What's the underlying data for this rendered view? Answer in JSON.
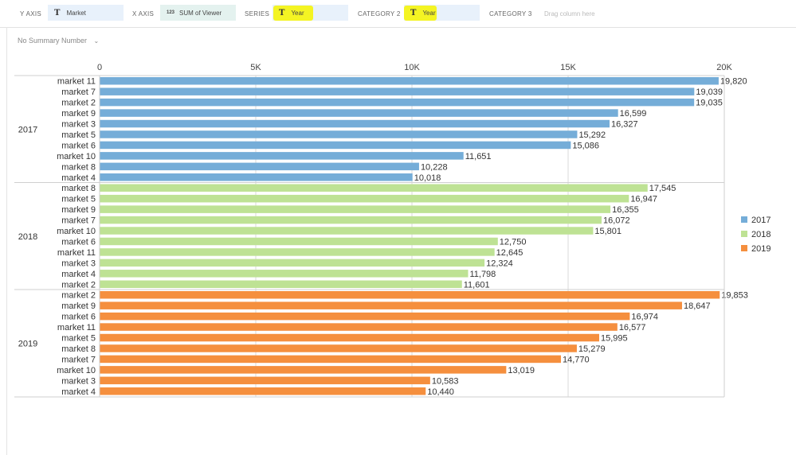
{
  "toolbar": {
    "y_axis_label": "Y AXIS",
    "y_axis_field": "Market",
    "y_axis_icon": "T",
    "x_axis_label": "X AXIS",
    "x_axis_field": "SUM of Viewer",
    "x_axis_icon": "123",
    "series_label": "SERIES",
    "series_field": "Year",
    "series_icon": "T",
    "category2_label": "CATEGORY 2",
    "category2_field": "Year",
    "category2_icon": "T",
    "category3_label": "CATEGORY 3",
    "drag_placeholder": "Drag column here"
  },
  "summary": {
    "label": "No Summary Number",
    "chevron_icon": "chevron-down-icon"
  },
  "chart_data": {
    "type": "bar",
    "orientation": "horizontal",
    "x_ticks": [
      "0",
      "5K",
      "10K",
      "15K",
      "20K"
    ],
    "xlim": [
      0,
      20000
    ],
    "grid": true,
    "legend_position": "right",
    "groups": [
      {
        "name": "2017",
        "color": "#75add8",
        "categories": [
          "market 11",
          "market 7",
          "market 2",
          "market 9",
          "market 3",
          "market 5",
          "market 6",
          "market 10",
          "market 8",
          "market 4"
        ],
        "values": [
          19820,
          19039,
          19035,
          16599,
          16327,
          15292,
          15086,
          11651,
          10228,
          10018
        ],
        "labels": [
          "19,820",
          "19,039",
          "19,035",
          "16,599",
          "16,327",
          "15,292",
          "15,086",
          "11,651",
          "10,228",
          "10,018"
        ]
      },
      {
        "name": "2018",
        "color": "#bee294",
        "categories": [
          "market 8",
          "market 5",
          "market 9",
          "market 7",
          "market 10",
          "market 6",
          "market 11",
          "market 3",
          "market 4",
          "market 2"
        ],
        "values": [
          17545,
          16947,
          16355,
          16072,
          15801,
          12750,
          12645,
          12324,
          11798,
          11601
        ],
        "labels": [
          "17,545",
          "16,947",
          "16,355",
          "16,072",
          "15,801",
          "12,750",
          "12,645",
          "12,324",
          "11,798",
          "11,601"
        ]
      },
      {
        "name": "2019",
        "color": "#f58f3e",
        "categories": [
          "market 2",
          "market 9",
          "market 6",
          "market 11",
          "market 5",
          "market 8",
          "market 7",
          "market 10",
          "market 3",
          "market 4"
        ],
        "values": [
          19853,
          18647,
          16974,
          16577,
          15995,
          15279,
          14770,
          13019,
          10583,
          10440
        ],
        "labels": [
          "19,853",
          "18,647",
          "16,974",
          "16,577",
          "15,995",
          "15,279",
          "14,770",
          "13,019",
          "10,583",
          "10,440"
        ]
      }
    ],
    "legend": [
      {
        "label": "2017",
        "color": "#75add8"
      },
      {
        "label": "2018",
        "color": "#bee294"
      },
      {
        "label": "2019",
        "color": "#f58f3e"
      }
    ]
  }
}
